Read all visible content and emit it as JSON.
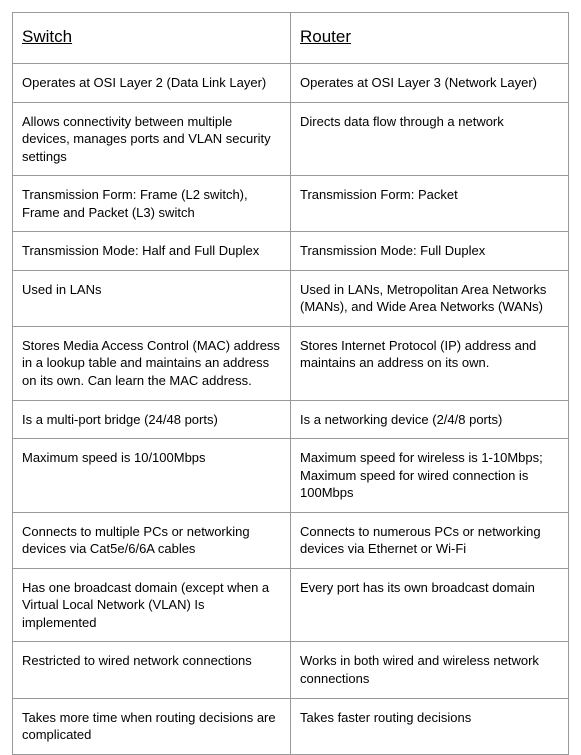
{
  "table": {
    "border_color": "#999999",
    "background_color": "#ffffff",
    "text_color": "#000000",
    "header_fontsize": 17,
    "body_fontsize": 13,
    "font_family": "Arial, Helvetica, sans-serif",
    "columns": [
      {
        "header": "Switch",
        "width_pct": 50
      },
      {
        "header": "Router",
        "width_pct": 50
      }
    ],
    "rows": [
      [
        "Operates at OSI Layer 2 (Data Link Layer)",
        "Operates at OSI Layer 3 (Network  Layer)"
      ],
      [
        "Allows connectivity between multiple devices, manages ports and VLAN security settings",
        "Directs data flow through a network"
      ],
      [
        "Transmission Form: Frame (L2 switch), Frame and Packet (L3) switch",
        "Transmission Form: Packet"
      ],
      [
        "Transmission Mode: Half and Full Duplex",
        " Transmission Mode: Full Duplex"
      ],
      [
        "Used in LANs",
        "Used in LANs, Metropolitan Area Networks (MANs), and Wide Area Networks (WANs)"
      ],
      [
        "Stores Media Access Control (MAC) address in a lookup table and maintains an address on its own. Can learn the MAC address.",
        "Stores Internet Protocol (IP) address and maintains an address on its own."
      ],
      [
        "Is a multi-port bridge (24/48 ports)",
        "Is a networking device (2/4/8 ports)"
      ],
      [
        "Maximum speed is 10/100Mbps",
        "Maximum speed for wireless is 1-10Mbps; Maximum speed for wired connection is 100Mbps"
      ],
      [
        "Connects to multiple PCs or networking devices via Cat5e/6/6A cables",
        "Connects to numerous PCs or networking devices via Ethernet or Wi-Fi"
      ],
      [
        "Has one broadcast domain (except when a Virtual Local Network (VLAN) Is implemented",
        "Every port has its own broadcast domain"
      ],
      [
        "Restricted to wired network connections",
        "Works in both wired and wireless network connections"
      ],
      [
        "Takes more time when routing decisions are complicated",
        "Takes faster routing decisions"
      ]
    ]
  }
}
